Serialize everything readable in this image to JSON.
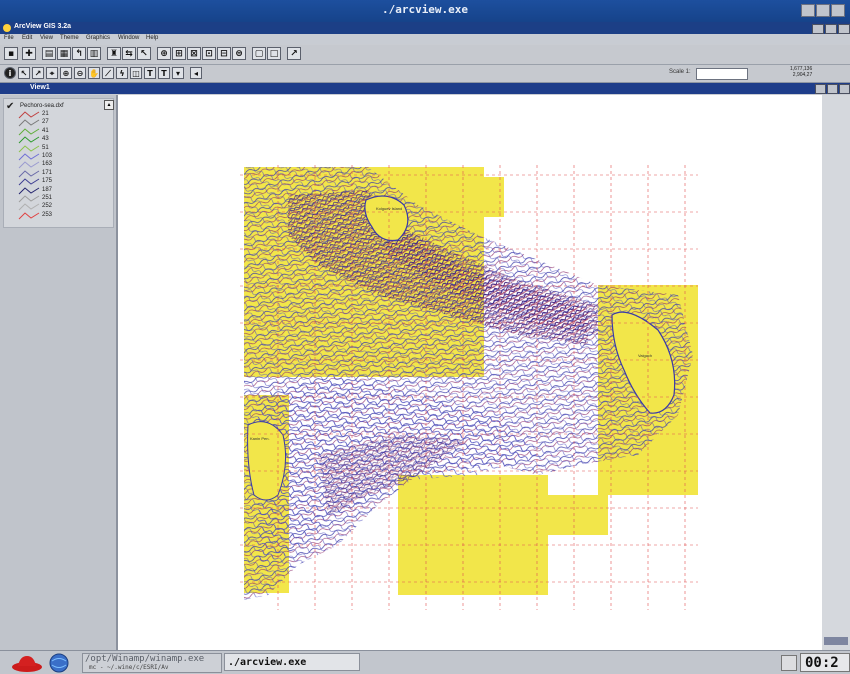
{
  "xwindow": {
    "title": "./arcview.exe"
  },
  "app": {
    "title": "ArcView GIS 3.2a"
  },
  "menu": [
    "File",
    "Edit",
    "View",
    "Theme",
    "Graphics",
    "Window",
    "Help"
  ],
  "toolbar": {
    "scale_label": "Scale 1:",
    "scale_value": "",
    "coord_x": "1,677,136",
    "coord_y": "2,904,27"
  },
  "view": {
    "title": "View1"
  },
  "toc": {
    "layer_name": "Pechoro-sea.dxf",
    "legend": [
      {
        "label": "21",
        "color": "#c04040"
      },
      {
        "label": "27",
        "color": "#7a7a7a"
      },
      {
        "label": "41",
        "color": "#5fae3a"
      },
      {
        "label": "43",
        "color": "#2e9a2e"
      },
      {
        "label": "51",
        "color": "#8bc34a"
      },
      {
        "label": "103",
        "color": "#6f6fd6"
      },
      {
        "label": "163",
        "color": "#9a9ad0"
      },
      {
        "label": "171",
        "color": "#6a6aa8"
      },
      {
        "label": "175",
        "color": "#3e3e92"
      },
      {
        "label": "187",
        "color": "#24246e"
      },
      {
        "label": "251",
        "color": "#9e9e9e"
      },
      {
        "label": "252",
        "color": "#b0b0b0"
      },
      {
        "label": "253",
        "color": "#e04040"
      }
    ]
  },
  "map": {
    "labels": [
      "Kolguev Island",
      "Vaigach",
      "Kanin Pen."
    ]
  },
  "taskbar": {
    "task1": "/opt/Winamp/winamp.exe",
    "task1_sub": "mc - ~/.wine/c/ESRI/Av",
    "task2": "./arcview.exe",
    "clock": "00:2"
  }
}
